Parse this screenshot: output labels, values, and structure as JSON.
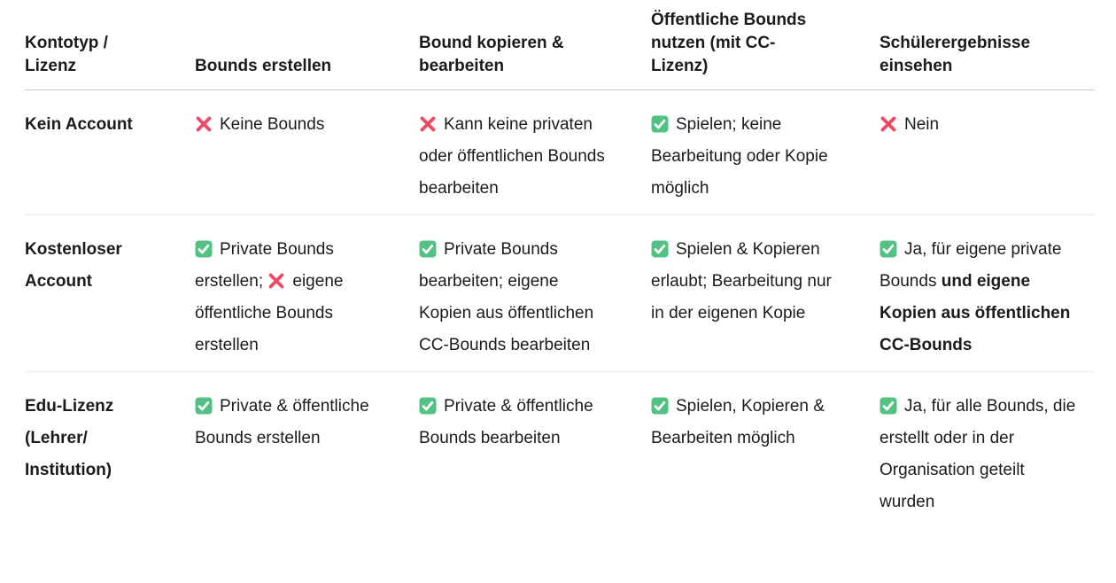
{
  "page": {
    "background": "#ffffff",
    "text_color": "#1b1b1b"
  },
  "colors": {
    "check_green": "#52c183",
    "check_mark_white": "#ffffff",
    "cross_red": "#ef4a64",
    "header_divider": "#c9c9c9",
    "row_divider": "#ebebeb"
  },
  "table": {
    "columns": [
      "Kontotyp / Lizenz",
      "Bounds erstellen",
      "Bound kopieren & bearbeiten",
      "Öffentliche Bounds nutzen (mit CC-Lizenz)",
      "Schülerergebnisse einsehen"
    ],
    "rows": [
      {
        "label": "Kein Account",
        "cells": [
          [
            {
              "icon": "cross",
              "text": "Keine Bounds"
            }
          ],
          [
            {
              "icon": "cross",
              "text": "Kann keine privaten oder öffentlichen Bounds bearbeiten"
            }
          ],
          [
            {
              "icon": "check",
              "text": "Spielen; keine Bearbeitung oder Kopie möglich"
            }
          ],
          [
            {
              "icon": "cross",
              "text": "Nein"
            }
          ]
        ]
      },
      {
        "label": "Kostenloser Account",
        "cells": [
          [
            {
              "icon": "check",
              "text": "Private Bounds erstellen;"
            },
            {
              "icon": "cross",
              "text": "eigene öffentliche Bounds erstellen"
            }
          ],
          [
            {
              "icon": "check",
              "text": "Private Bounds bearbeiten; eigene Kopien aus öffentlichen CC-Bounds bearbeiten"
            }
          ],
          [
            {
              "icon": "check",
              "text": "Spielen & Kopieren erlaubt; Bearbeitung nur in der eigenen Kopie"
            }
          ],
          [
            {
              "icon": "check",
              "text": "Ja, für eigene private Bounds "
            },
            {
              "text": "und eigene Kopien aus öffentlichen CC-Bounds",
              "bold": true
            }
          ]
        ]
      },
      {
        "label": "Edu-Lizenz (Lehrer/ Institution)",
        "cells": [
          [
            {
              "icon": "check",
              "text": "Private & öffentliche Bounds erstellen"
            }
          ],
          [
            {
              "icon": "check",
              "text": "Private & öffentliche Bounds bearbeiten"
            }
          ],
          [
            {
              "icon": "check",
              "text": "Spielen, Kopieren & Bearbeiten möglich"
            }
          ],
          [
            {
              "icon": "check",
              "text": "Ja, für alle Bounds, die erstellt oder in der Organisation geteilt wurden"
            }
          ]
        ]
      }
    ]
  }
}
